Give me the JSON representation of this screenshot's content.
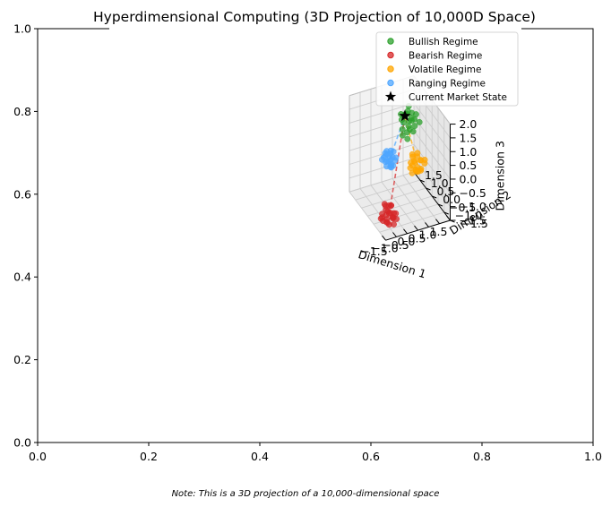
{
  "chart_data": {
    "type": "scatter",
    "title": "Hyperdimensional Computing (3D Projection of 10,000D Space)",
    "note": "Note: This is a 3D projection of a 10,000-dimensional space",
    "axes2d": {
      "xlim": [
        0.0,
        1.0
      ],
      "ylim": [
        0.0,
        1.0
      ],
      "xticks": [
        "0.0",
        "0.2",
        "0.4",
        "0.6",
        "0.8",
        "1.0"
      ],
      "yticks": [
        "0.0",
        "0.2",
        "0.4",
        "0.6",
        "0.8",
        "1.0"
      ]
    },
    "axes3d": {
      "xlabel": "Dimension 1",
      "ylabel": "Dimension 2",
      "zlabel": "Dimension 3",
      "xlim": [
        -1.5,
        1.5
      ],
      "ylim": [
        -1.5,
        1.5
      ],
      "zlim": [
        -1.5,
        2.0
      ],
      "xticks": [
        "−1.5",
        "−1.0",
        "−0.5",
        "0.0",
        "0.5",
        "1.0",
        "1.5"
      ],
      "yticks": [
        "−1.5",
        "−1.0",
        "−0.5",
        "0.0",
        "0.5",
        "1.0",
        "1.5"
      ],
      "zticks": [
        "−1.5",
        "−1.0",
        "−0.5",
        "0.0",
        "0.5",
        "1.0",
        "1.5",
        "2.0"
      ],
      "grid": true
    },
    "legend_position": "top-right",
    "series": [
      {
        "name": "Bullish Regime",
        "color": "#2ca02c",
        "points": [
          [
            0.85,
            0.75,
            0.95
          ],
          [
            0.9,
            1.0,
            1.05
          ],
          [
            0.75,
            0.9,
            1.1
          ],
          [
            1.0,
            0.8,
            0.9
          ],
          [
            0.8,
            1.1,
            0.7
          ],
          [
            1.1,
            1.0,
            0.85
          ],
          [
            0.7,
            0.8,
            1.2
          ],
          [
            0.95,
            0.7,
            1.25
          ],
          [
            1.05,
            1.2,
            1.0
          ],
          [
            0.65,
            1.0,
            0.9
          ],
          [
            1.2,
            0.9,
            0.6
          ],
          [
            0.8,
            0.6,
            0.75
          ],
          [
            0.9,
            1.3,
            0.8
          ],
          [
            1.15,
            0.7,
            1.15
          ],
          [
            0.7,
            1.15,
            1.0
          ],
          [
            1.0,
            1.05,
            0.55
          ],
          [
            0.85,
            0.9,
            0.45
          ],
          [
            0.6,
            0.85,
            0.65
          ],
          [
            1.3,
            1.1,
            0.7
          ],
          [
            0.95,
            0.95,
            1.35
          ],
          [
            1.1,
            0.85,
            0.45
          ],
          [
            0.75,
            0.7,
            0.35
          ],
          [
            0.55,
            0.75,
            0.5
          ],
          [
            1.25,
            0.6,
            0.9
          ]
        ]
      },
      {
        "name": "Bearish Regime",
        "color": "#d62728",
        "points": [
          [
            -1.0,
            -0.9,
            -1.0
          ],
          [
            -1.1,
            -0.8,
            -0.9
          ],
          [
            -0.9,
            -1.0,
            -1.1
          ],
          [
            -1.2,
            -1.0,
            -0.95
          ],
          [
            -0.95,
            -0.7,
            -1.05
          ],
          [
            -1.05,
            -1.1,
            -0.85
          ],
          [
            -0.8,
            -0.9,
            -1.2
          ],
          [
            -1.3,
            -0.85,
            -1.1
          ],
          [
            -1.0,
            -1.2,
            -1.0
          ],
          [
            -1.15,
            -0.95,
            -1.25
          ],
          [
            -0.85,
            -0.8,
            -0.8
          ],
          [
            -1.25,
            -1.15,
            -1.0
          ],
          [
            -0.9,
            -1.1,
            -1.3
          ],
          [
            -1.1,
            -0.7,
            -0.75
          ],
          [
            -1.35,
            -0.95,
            -0.9
          ],
          [
            -0.75,
            -1.0,
            -1.0
          ],
          [
            -1.0,
            -0.6,
            -0.9
          ],
          [
            -1.2,
            -1.25,
            -1.15
          ],
          [
            -0.95,
            -0.95,
            -0.7
          ],
          [
            -1.05,
            -0.85,
            -1.35
          ],
          [
            -0.8,
            -1.15,
            -1.1
          ],
          [
            -1.3,
            -0.75,
            -1.2
          ],
          [
            -1.1,
            -1.05,
            -0.6
          ],
          [
            -0.7,
            -0.75,
            -1.15
          ],
          [
            -1.4,
            -1.1,
            -1.05
          ]
        ]
      },
      {
        "name": "Volatile Regime",
        "color": "#ffa500",
        "points": [
          [
            0.5,
            -0.3,
            0.2
          ],
          [
            0.6,
            -0.4,
            0.0
          ],
          [
            0.4,
            -0.2,
            0.1
          ],
          [
            0.7,
            -0.5,
            0.3
          ],
          [
            0.55,
            -0.35,
            -0.1
          ],
          [
            0.45,
            -0.45,
            0.25
          ],
          [
            0.8,
            -0.3,
            0.15
          ],
          [
            0.35,
            -0.25,
            -0.05
          ],
          [
            0.65,
            -0.6,
            0.05
          ],
          [
            0.5,
            -0.15,
            0.35
          ],
          [
            0.75,
            -0.4,
            -0.15
          ],
          [
            0.3,
            -0.5,
            0.2
          ],
          [
            0.6,
            -0.25,
            -0.2
          ],
          [
            0.9,
            -0.45,
            0.1
          ],
          [
            0.4,
            -0.35,
            0.4
          ],
          [
            0.55,
            -0.55,
            -0.05
          ],
          [
            0.7,
            -0.2,
            0.25
          ],
          [
            0.45,
            -0.6,
            0.0
          ],
          [
            0.85,
            -0.55,
            0.3
          ],
          [
            0.35,
            -0.4,
            -0.15
          ],
          [
            0.65,
            -0.3,
            0.45
          ]
        ]
      },
      {
        "name": "Ranging Regime",
        "color": "#4da6ff",
        "points": [
          [
            -0.3,
            0.3,
            0.2
          ],
          [
            -0.2,
            0.4,
            0.0
          ],
          [
            -0.4,
            0.2,
            0.1
          ],
          [
            -0.1,
            0.35,
            0.3
          ],
          [
            -0.35,
            0.45,
            -0.05
          ],
          [
            -0.25,
            0.15,
            0.25
          ],
          [
            -0.5,
            0.3,
            0.05
          ],
          [
            -0.15,
            0.5,
            0.15
          ],
          [
            -0.3,
            0.25,
            -0.15
          ],
          [
            -0.45,
            0.4,
            0.3
          ],
          [
            -0.2,
            0.2,
            -0.1
          ],
          [
            -0.55,
            0.35,
            0.2
          ],
          [
            -0.05,
            0.3,
            0.0
          ],
          [
            -0.4,
            0.5,
            0.1
          ],
          [
            -0.25,
            0.3,
            0.4
          ],
          [
            -0.35,
            0.1,
            0.0
          ],
          [
            -0.15,
            0.45,
            -0.2
          ],
          [
            -0.5,
            0.2,
            -0.05
          ],
          [
            -0.3,
            0.55,
            0.25
          ],
          [
            -0.6,
            0.4,
            0.1
          ],
          [
            -0.1,
            0.15,
            0.2
          ],
          [
            -0.45,
            0.25,
            0.35
          ],
          [
            -0.2,
            0.35,
            -0.25
          ]
        ]
      }
    ],
    "current_state": {
      "name": "Current Market State",
      "color": "#000000",
      "point": [
        0.8,
        1.0,
        1.0
      ]
    },
    "centroids": [
      {
        "series": "Bearish Regime",
        "point": [
          -1.0,
          -0.9,
          -1.0
        ]
      },
      {
        "series": "Volatile Regime",
        "point": [
          0.6,
          -0.4,
          0.1
        ]
      },
      {
        "series": "Ranging Regime",
        "point": [
          -0.3,
          0.3,
          0.1
        ]
      }
    ]
  }
}
